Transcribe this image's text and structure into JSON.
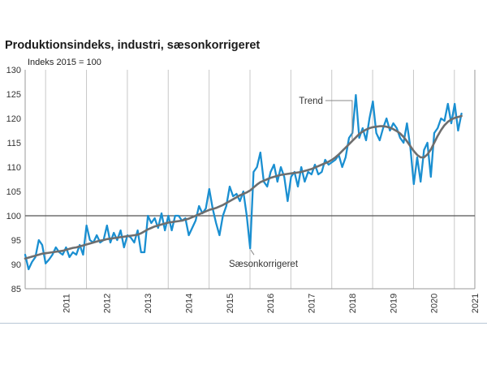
{
  "chart_data": {
    "type": "line",
    "title": "Produktionsindeks, industri, sæsonkorrigeret",
    "ylabel": "Indeks 2015 = 100",
    "xlabel": "",
    "ylim": [
      85,
      130
    ],
    "yticks": [
      85,
      90,
      95,
      100,
      105,
      110,
      115,
      120,
      125,
      130
    ],
    "xlim": [
      2010.5,
      2021.5
    ],
    "year_labels": [
      "2011",
      "2012",
      "2013",
      "2014",
      "2015",
      "2016",
      "2017",
      "2018",
      "2019",
      "2020",
      "2021"
    ],
    "reference_line": 100,
    "grid": "vertical",
    "annotations": [
      {
        "text": "Trend",
        "series": "Trend",
        "at_x": 2018.5
      },
      {
        "text": "Sæsonkorrigeret",
        "series": "Sæsonkorrigeret",
        "at_x": 2016.0
      }
    ],
    "series": [
      {
        "name": "Sæsonkorrigeret",
        "color": "#1a8fd1",
        "x_start": 2010.5,
        "x_step": 0.0834,
        "values": [
          92.0,
          89.0,
          90.5,
          91.5,
          95.0,
          94.0,
          90.2,
          91.0,
          92.0,
          93.5,
          92.5,
          92.0,
          93.5,
          91.5,
          92.5,
          92.0,
          94.0,
          92.0,
          98.0,
          95.0,
          94.5,
          96.0,
          94.5,
          95.0,
          98.0,
          94.5,
          96.5,
          95.0,
          97.0,
          93.5,
          96.0,
          95.5,
          94.5,
          97.0,
          92.5,
          92.5,
          100.0,
          98.5,
          99.5,
          97.5,
          100.5,
          97.0,
          100.0,
          97.0,
          100.0,
          100.0,
          99.0,
          99.5,
          96.0,
          97.5,
          99.0,
          102.0,
          100.5,
          101.5,
          105.5,
          101.5,
          98.5,
          96.0,
          100.0,
          102.0,
          106.0,
          104.0,
          104.5,
          103.0,
          105.0,
          100.0,
          93.3,
          109.0,
          110.0,
          113.0,
          107.0,
          106.0,
          109.0,
          110.5,
          107.0,
          110.0,
          108.0,
          103.0,
          108.0,
          109.0,
          106.0,
          110.0,
          107.0,
          109.0,
          108.5,
          110.5,
          108.5,
          109.0,
          111.5,
          110.5,
          111.0,
          111.5,
          112.5,
          110.0,
          112.0,
          116.0,
          117.0,
          124.8,
          116.0,
          118.0,
          115.5,
          120.0,
          123.5,
          117.0,
          115.5,
          118.0,
          120.0,
          117.5,
          119.0,
          118.0,
          116.0,
          115.0,
          119.0,
          114.0,
          106.5,
          112.0,
          107.0,
          113.5,
          115.0,
          108.0,
          117.0,
          118.0,
          120.0,
          119.5,
          123.0,
          119.0,
          123.0,
          117.5,
          121.0
        ]
      },
      {
        "name": "Trend",
        "color": "#6e6e6e",
        "x_start": 2010.5,
        "x_step": 0.0834,
        "values": [
          91.2,
          91.4,
          91.6,
          91.8,
          92.0,
          92.2,
          92.3,
          92.4,
          92.5,
          92.6,
          92.7,
          92.8,
          93.0,
          93.2,
          93.4,
          93.5,
          93.7,
          93.9,
          94.1,
          94.3,
          94.5,
          94.7,
          94.9,
          95.0,
          95.2,
          95.3,
          95.4,
          95.5,
          95.6,
          95.7,
          95.8,
          95.9,
          96.0,
          96.1,
          96.4,
          96.8,
          97.2,
          97.5,
          97.8,
          98.0,
          98.2,
          98.4,
          98.6,
          98.7,
          98.8,
          98.9,
          99.0,
          99.2,
          99.4,
          99.7,
          100.0,
          100.3,
          100.6,
          100.9,
          101.2,
          101.4,
          101.6,
          101.9,
          102.2,
          102.6,
          103.0,
          103.4,
          103.8,
          104.2,
          104.5,
          104.8,
          105.2,
          105.8,
          106.4,
          106.9,
          107.2,
          107.5,
          107.8,
          108.0,
          108.2,
          108.4,
          108.5,
          108.6,
          108.7,
          108.8,
          108.9,
          109.0,
          109.2,
          109.4,
          109.6,
          109.9,
          110.2,
          110.5,
          110.8,
          111.1,
          111.5,
          112.0,
          112.6,
          113.3,
          114.0,
          114.7,
          115.4,
          116.1,
          116.8,
          117.3,
          117.7,
          118.0,
          118.2,
          118.3,
          118.4,
          118.4,
          118.3,
          118.1,
          117.8,
          117.4,
          116.9,
          116.2,
          115.3,
          114.3,
          113.3,
          112.5,
          112.0,
          112.0,
          112.6,
          113.6,
          115.0,
          116.4,
          117.6,
          118.6,
          119.3,
          119.8,
          120.1,
          120.3,
          120.5
        ]
      }
    ]
  }
}
